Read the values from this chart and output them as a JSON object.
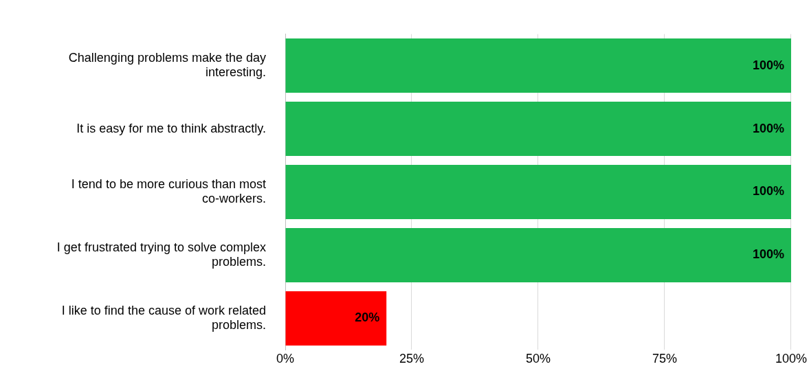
{
  "chart_data": {
    "type": "bar",
    "orientation": "horizontal",
    "categories": [
      "Challenging problems make the day interesting.",
      "It is easy for me to think abstractly.",
      "I tend to be more curious than most co-workers.",
      "I get frustrated trying to solve complex problems.",
      "I like to find the cause of work related problems."
    ],
    "values": [
      100,
      100,
      100,
      100,
      20
    ],
    "colors": [
      "#1db954",
      "#1db954",
      "#1db954",
      "#1db954",
      "#ff0000"
    ],
    "value_labels": [
      "100%",
      "100%",
      "100%",
      "100%",
      "20%"
    ],
    "xlim": [
      0,
      100
    ],
    "xticks": [
      {
        "value": 0,
        "label": "0%"
      },
      {
        "value": 25,
        "label": "25%"
      },
      {
        "value": 50,
        "label": "50%"
      },
      {
        "value": 75,
        "label": "75%"
      },
      {
        "value": 100,
        "label": "100%"
      }
    ],
    "grid": "x"
  }
}
